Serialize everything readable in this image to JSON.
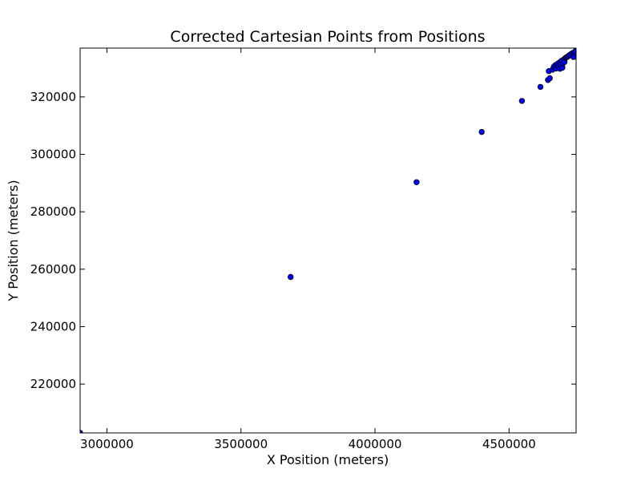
{
  "chart_data": {
    "type": "scatter",
    "title": "Corrected Cartesian Points from Positions",
    "xlabel": "X Position (meters)",
    "ylabel": "Y Position (meters)",
    "xlim": [
      2900000,
      4750000
    ],
    "ylim": [
      203000,
      337000
    ],
    "xticks": [
      3000000,
      3500000,
      4000000,
      4500000
    ],
    "xtick_labels": [
      "3000000",
      "3500000",
      "4000000",
      "4500000"
    ],
    "yticks": [
      220000,
      240000,
      260000,
      280000,
      300000,
      320000
    ],
    "ytick_labels": [
      "220000",
      "240000",
      "260000",
      "280000",
      "300000",
      "320000"
    ],
    "grid": false,
    "marker_color": "#0000ff",
    "marker_edge_color": "#000000",
    "series": [
      {
        "points": [
          [
            2900000,
            203000
          ],
          [
            3685000,
            257300
          ],
          [
            4155000,
            290300
          ],
          [
            4398000,
            307800
          ],
          [
            4548000,
            318600
          ],
          [
            4617000,
            323500
          ],
          [
            4645000,
            325900
          ],
          [
            4652000,
            326500
          ],
          [
            4648000,
            329000
          ],
          [
            4662000,
            329500
          ],
          [
            4667000,
            330500
          ],
          [
            4672000,
            331000
          ],
          [
            4675000,
            329900
          ],
          [
            4680000,
            331500
          ],
          [
            4684000,
            330700
          ],
          [
            4688000,
            332000
          ],
          [
            4690000,
            329800
          ],
          [
            4693000,
            331200
          ],
          [
            4696000,
            332600
          ],
          [
            4699000,
            330200
          ],
          [
            4701000,
            331700
          ],
          [
            4704000,
            333000
          ],
          [
            4707000,
            332200
          ],
          [
            4710000,
            333500
          ],
          [
            4714000,
            333800
          ],
          [
            4718000,
            334000
          ],
          [
            4722000,
            334300
          ],
          [
            4726000,
            334600
          ],
          [
            4731000,
            334900
          ],
          [
            4736000,
            335200
          ],
          [
            4742000,
            335500
          ],
          [
            4748000,
            336000
          ],
          [
            4745000,
            334400
          ],
          [
            4740000,
            333900
          ]
        ]
      }
    ]
  }
}
